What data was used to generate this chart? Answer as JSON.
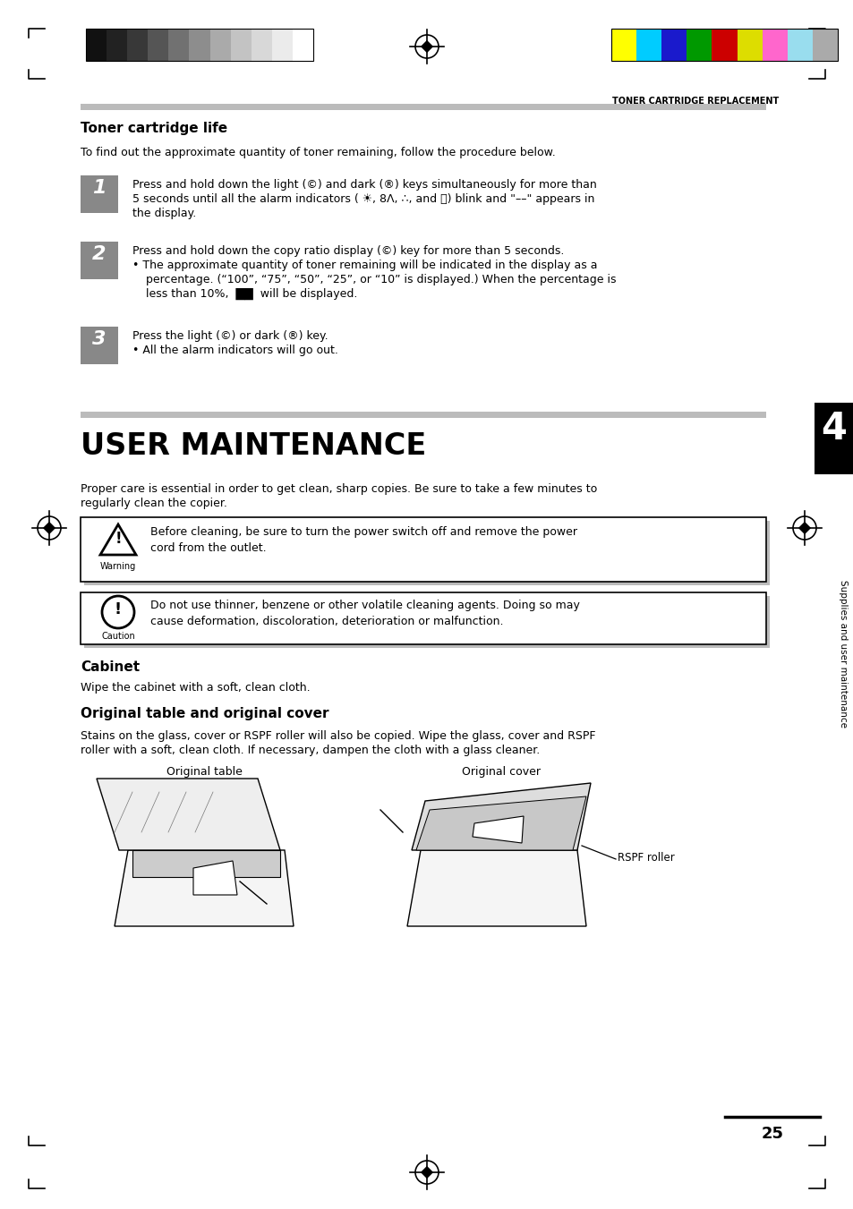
{
  "page_bg": "#ffffff",
  "header_text": "TONER CARTRIDGE REPLACEMENT",
  "section1_title": "Toner cartridge life",
  "section1_intro": "To find out the approximate quantity of toner remaining, follow the procedure below.",
  "step1_line1": "Press and hold down the light (©) and dark (®) keys simultaneously for more than",
  "step1_line2": "5 seconds until all the alarm indicators ( ☀,  8Λ,  ∴, and  🚶) blink and \"––\" appears in",
  "step1_line3": "the display.",
  "step2_line1": "Press and hold down the copy ratio display (©) key for more than 5 seconds.",
  "step2_line2": "• The approximate quantity of toner remaining will be indicated in the display as a",
  "step2_line3": "   percentage. (“100”, “75”, “50”, “25”, or “10” is displayed.) When the percentage is",
  "step2_line4": "   less than 10%,  ██  will be displayed.",
  "step3_line1": "Press the light (©) or dark (®) key.",
  "step3_line2": "• All the alarm indicators will go out.",
  "section2_title": "USER MAINTENANCE",
  "section2_intro1": "Proper care is essential in order to get clean, sharp copies. Be sure to take a few minutes to",
  "section2_intro2": "regularly clean the copier.",
  "warn_line1": "Before cleaning, be sure to turn the power switch off and remove the power",
  "warn_line2": "cord from the outlet.",
  "warn_label": "Warning",
  "caut_line1": "Do not use thinner, benzene or other volatile cleaning agents. Doing so may",
  "caut_line2": "cause deformation, discoloration, deterioration or malfunction.",
  "caut_label": "Caution",
  "section3_title": "Cabinet",
  "section3_text": "Wipe the cabinet with a soft, clean cloth.",
  "section4_title": "Original table and original cover",
  "section4_text1": "Stains on the glass, cover or RSPF roller will also be copied. Wipe the glass, cover and RSPF",
  "section4_text2": "roller with a soft, clean cloth. If necessary, dampen the cloth with a glass cleaner.",
  "orig_table_label": "Original table",
  "orig_cover_label": "Original cover",
  "rspf_label": "RSPF roller",
  "page_num": "25",
  "chapter_num": "4",
  "sidebar_text": "Supplies and user maintenance",
  "bw_colors": [
    "#111111",
    "#222222",
    "#383838",
    "#555555",
    "#717171",
    "#8d8d8d",
    "#aaaaaa",
    "#c3c3c3",
    "#d8d8d8",
    "#ebebeb",
    "#ffffff"
  ],
  "color_colors": [
    "#ffff00",
    "#00ccff",
    "#1a1acc",
    "#009900",
    "#cc0000",
    "#dddd00",
    "#ff66cc",
    "#99ddee",
    "#aaaaaa"
  ]
}
